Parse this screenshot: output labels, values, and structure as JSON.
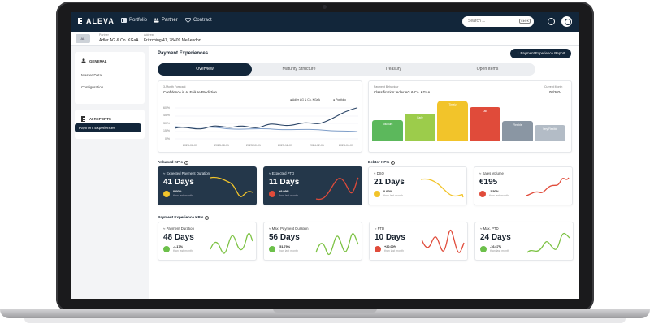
{
  "nav": {
    "brand": "ALEVA",
    "items": [
      {
        "label": "Portfolio",
        "active": false
      },
      {
        "label": "Partner",
        "active": true
      },
      {
        "label": "Contract",
        "active": false
      }
    ],
    "search_placeholder": "Search ...",
    "search_shortcut": "Ctrl+K"
  },
  "partner": {
    "id_badge": "AL",
    "partner_label": "Partner",
    "partner_name": "Adler AG & Co. KGaA",
    "address_label": "Address",
    "address": "Fritzching 41, 78409 Meßendorf"
  },
  "sidebar": {
    "general_heading": "GENERAL",
    "general_items": [
      "Master Data",
      "Configuration"
    ],
    "ai_heading": "AI REPORTS",
    "ai_items": [
      "Payment Experiences"
    ]
  },
  "page": {
    "title": "Payment Experiences",
    "report_button": "Payment Experience Report",
    "tabs": [
      "Overview",
      "Maturity Structure",
      "Treasury",
      "Open Items"
    ],
    "active_tab": 0
  },
  "forecast": {
    "kicker": "3-Month Forecast",
    "title": "Confidence in AI Failure Prediction",
    "legend": [
      "Adler AG & Co. KGaA",
      "Portfolio"
    ],
    "y_ticks": [
      "60 %",
      "45 %",
      "30 %",
      "15 %",
      "0 %"
    ],
    "x_ticks": [
      "2023-06-01",
      "2023-08-01",
      "2023-10-01",
      "2023-12-01",
      "2024-02-01",
      "2024-04-01"
    ]
  },
  "behaviour": {
    "kicker": "Payment Behaviour",
    "title": "Classification: Adler AG & Co. KGaA",
    "month_label": "Current Month",
    "month": "08/2024",
    "categories": [
      "Discount",
      "Early",
      "Timely",
      "Late",
      "Flexible",
      "Very Flexible"
    ],
    "colors": [
      "#5cb85c",
      "#9ccc4b",
      "#f2c42a",
      "#e04b3a",
      "#8a96a3",
      "#b3bcc6"
    ],
    "active_index": 2
  },
  "ai_kpis": {
    "heading": "AI-based KPIs",
    "cards": [
      {
        "title": "Expected Payment Duration",
        "value": "41 Days",
        "change": "0.00%",
        "sub": "than last month",
        "badge": "#f2c42a",
        "line": "#f2c42a"
      },
      {
        "title": "Expected PTD",
        "value": "11 Days",
        "change": "+9.09%",
        "sub": "than last month",
        "badge": "#e04b3a",
        "line": "#e04b3a"
      }
    ]
  },
  "debtor_kpis": {
    "heading": "Debtor KPIs",
    "cards": [
      {
        "title": "DSO",
        "value": "21 Days",
        "change": "0.00%",
        "sub": "than last month",
        "badge": "#f2c42a",
        "line": "#f2c42a"
      },
      {
        "title": "Sales Volume",
        "value": "€195",
        "change": "-2.50%",
        "sub": "than last month",
        "badge": "#e04b3a",
        "line": "#e04b3a"
      }
    ]
  },
  "pe_kpis": {
    "heading": "Payment Experience KPIs",
    "cards": [
      {
        "title": "Payment Duration",
        "value": "48 Days",
        "change": "-4.17%",
        "sub": "than last month",
        "badge": "#6cc04a",
        "line": "#7cc243"
      },
      {
        "title": "Max. Payment Duration",
        "value": "56 Days",
        "change": "-51.79%",
        "sub": "than last month",
        "badge": "#6cc04a",
        "line": "#7cc243"
      },
      {
        "title": "PTD",
        "value": "10 Days",
        "change": "+20.00%",
        "sub": "than last month",
        "badge": "#e04b3a",
        "line": "#e04b3a"
      },
      {
        "title": "Max. PTD",
        "value": "24 Days",
        "change": "-16.67%",
        "sub": "than last month",
        "badge": "#6cc04a",
        "line": "#7cc243"
      }
    ]
  },
  "colors": {
    "navy": "#12263a",
    "card_dark": "#24374a"
  }
}
